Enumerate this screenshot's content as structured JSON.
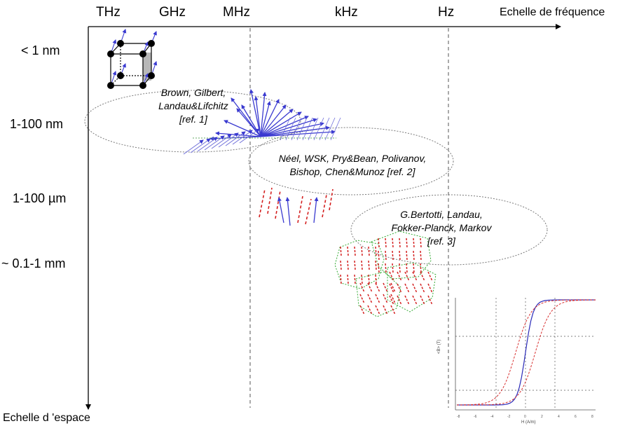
{
  "axes": {
    "frequency_label": "Echelle de fréquence",
    "space_label": "Echelle d 'espace",
    "frequency_ticks": [
      "THz",
      "GHz",
      "MHz",
      "kHz",
      "Hz"
    ],
    "space_ticks": [
      "< 1 nm",
      "1-100 nm",
      "1-100 µm",
      "~ 0.1-1 mm"
    ]
  },
  "models": [
    {
      "text": "Brown, Gilbert,\nLandau&Lifchitz\n[ref. 1]"
    },
    {
      "text": "Néel, WSK, Pry&Bean, Polivanov,\nBishop, Chen&Munoz [ref. 2]"
    },
    {
      "text": "G.Bertotti, Landau,\nFokker-Planck, Markov\n[ref. 3]"
    }
  ],
  "hysteresis_inset": {
    "ylabel": "<B> (T)",
    "xlabel": "H (A/m)",
    "tick_labels": [
      "-8",
      "-6",
      "-4",
      "-2",
      "0",
      "2",
      "4",
      "6",
      "8"
    ]
  },
  "colors": {
    "axis": "#000000",
    "divider": "#555555",
    "spin_arrow": "#3a3ad0",
    "domain_arrow": "#d42020",
    "ellipse": "#7a7a7a",
    "grain_outline": "#33aa33",
    "curve_blue": "#2a2ab8",
    "curve_red": "#d83030"
  }
}
